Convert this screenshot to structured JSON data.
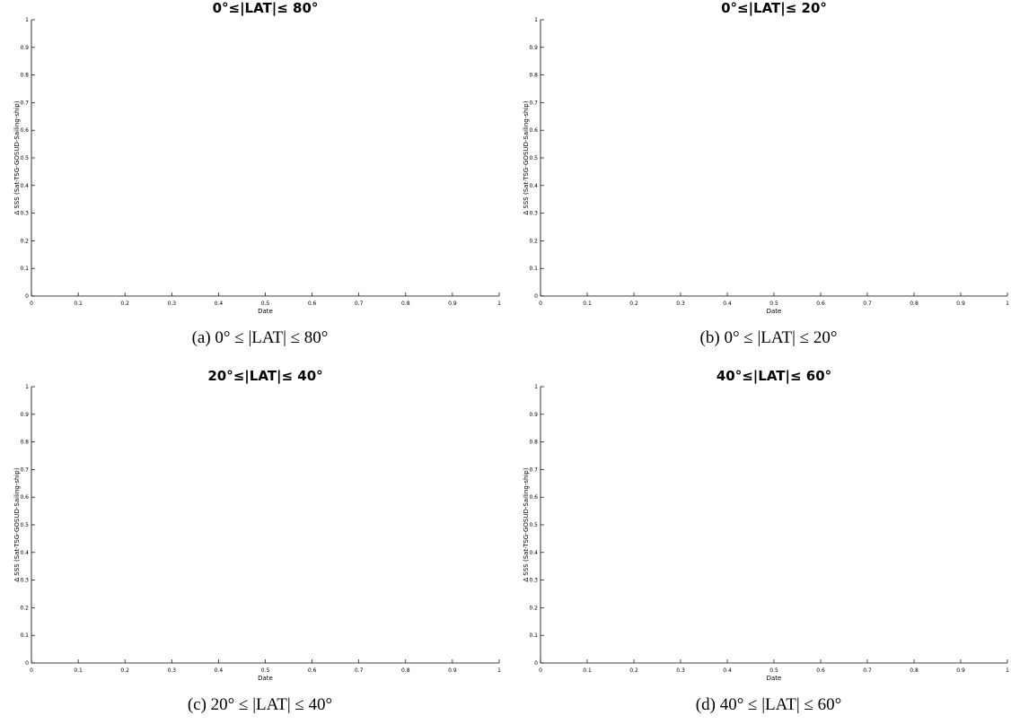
{
  "chart_data": [
    {
      "type": "line",
      "title": "0°≤|LAT|≤ 80°",
      "caption": "(a) 0° ≤ |LAT| ≤ 80°",
      "xlabel": "Date",
      "ylabel": "Δ SSS (Sat-TSG-GOSUD-Sailing-ship)",
      "xlim": [
        0,
        1
      ],
      "ylim": [
        0,
        1
      ],
      "xticks": [
        "0",
        "0.1",
        "0.2",
        "0.3",
        "0.4",
        "0.5",
        "0.6",
        "0.7",
        "0.8",
        "0.9",
        "1"
      ],
      "yticks": [
        "0",
        "0.1",
        "0.2",
        "0.3",
        "0.4",
        "0.5",
        "0.6",
        "0.7",
        "0.8",
        "0.9",
        "1"
      ],
      "series": [],
      "grid": false
    },
    {
      "type": "line",
      "title": "0°≤|LAT|≤ 20°",
      "caption": "(b) 0° ≤ |LAT| ≤ 20°",
      "xlabel": "Date",
      "ylabel": "Δ SSS (Sat-TSG-GOSUD-Sailing-ship)",
      "xlim": [
        0,
        1
      ],
      "ylim": [
        0,
        1
      ],
      "xticks": [
        "0",
        "0.1",
        "0.2",
        "0.3",
        "0.4",
        "0.5",
        "0.6",
        "0.7",
        "0.8",
        "0.9",
        "1"
      ],
      "yticks": [
        "0",
        "0.1",
        "0.2",
        "0.3",
        "0.4",
        "0.5",
        "0.6",
        "0.7",
        "0.8",
        "0.9",
        "1"
      ],
      "series": [],
      "grid": false
    },
    {
      "type": "line",
      "title": "20°≤|LAT|≤ 40°",
      "caption": "(c) 20° ≤ |LAT| ≤ 40°",
      "xlabel": "Date",
      "ylabel": "Δ SSS (Sat-TSG-GOSUD-Sailing-ship)",
      "xlim": [
        0,
        1
      ],
      "ylim": [
        0,
        1
      ],
      "xticks": [
        "0",
        "0.1",
        "0.2",
        "0.3",
        "0.4",
        "0.5",
        "0.6",
        "0.7",
        "0.8",
        "0.9",
        "1"
      ],
      "yticks": [
        "0",
        "0.1",
        "0.2",
        "0.3",
        "0.4",
        "0.5",
        "0.6",
        "0.7",
        "0.8",
        "0.9",
        "1"
      ],
      "series": [],
      "grid": false
    },
    {
      "type": "line",
      "title": "40°≤|LAT|≤ 60°",
      "caption": "(d) 40° ≤ |LAT| ≤ 60°",
      "xlabel": "Date",
      "ylabel": "Δ SSS (Sat-TSG-GOSUD-Sailing-ship)",
      "xlim": [
        0,
        1
      ],
      "ylim": [
        0,
        1
      ],
      "xticks": [
        "0",
        "0.1",
        "0.2",
        "0.3",
        "0.4",
        "0.5",
        "0.6",
        "0.7",
        "0.8",
        "0.9",
        "1"
      ],
      "yticks": [
        "0",
        "0.1",
        "0.2",
        "0.3",
        "0.4",
        "0.5",
        "0.6",
        "0.7",
        "0.8",
        "0.9",
        "1"
      ],
      "series": [],
      "grid": false
    }
  ]
}
